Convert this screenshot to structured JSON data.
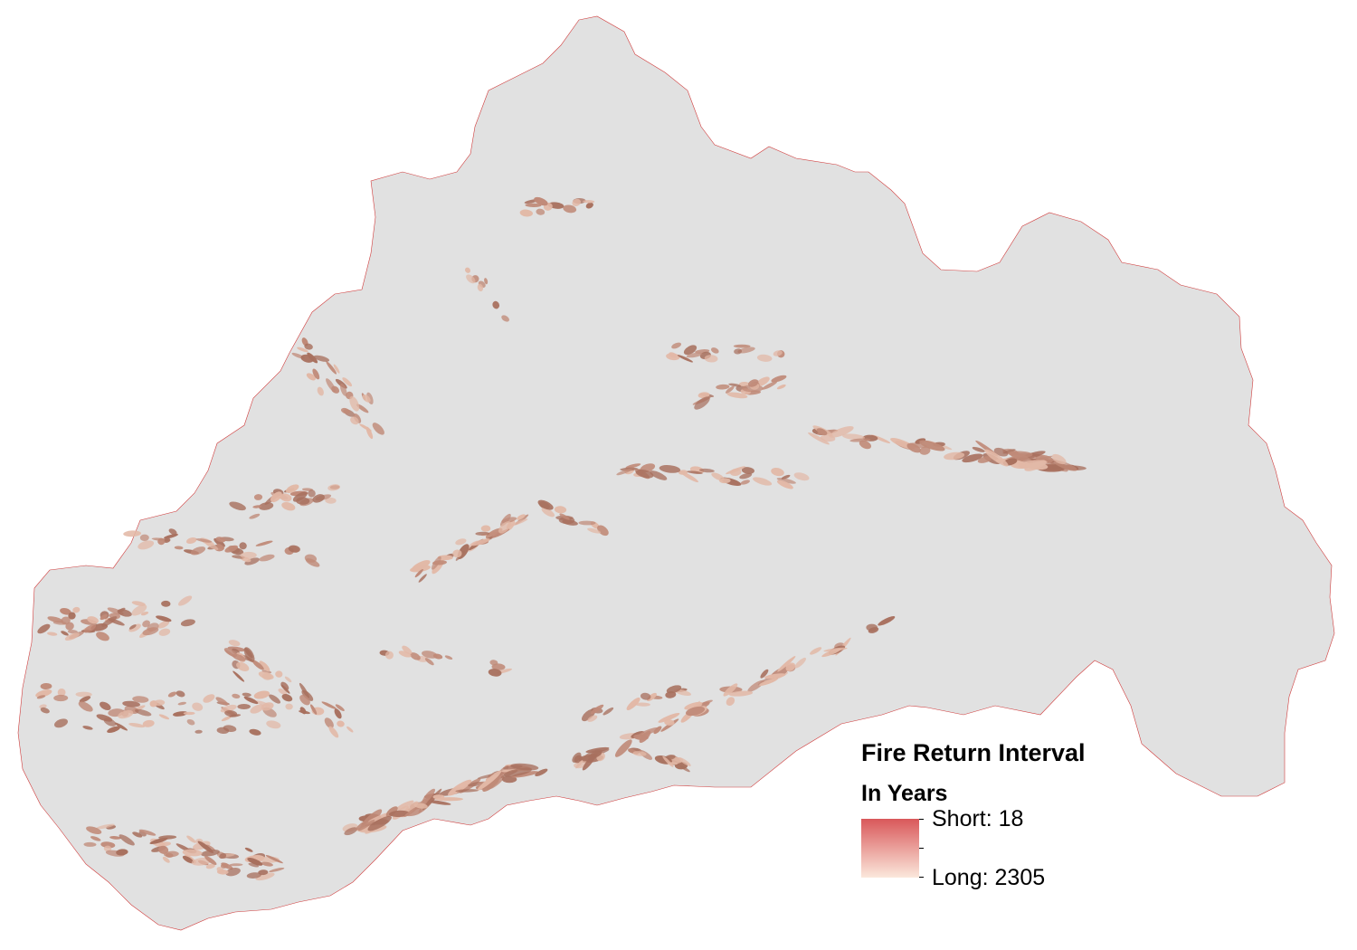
{
  "legend": {
    "title": "Fire Return Interval",
    "subtitle": "In Years",
    "short_label": "Short: 18",
    "long_label": "Long: 2305",
    "short_color": "#d9585a",
    "long_color": "#fbe8dc"
  },
  "colors": {
    "watershed_fill": "#e1e1e1",
    "patch_dark": "#a8705e",
    "patch_mid": "#c08a78",
    "patch_light": "#e2b8a6",
    "boundary_edge": "#d03c3c"
  }
}
